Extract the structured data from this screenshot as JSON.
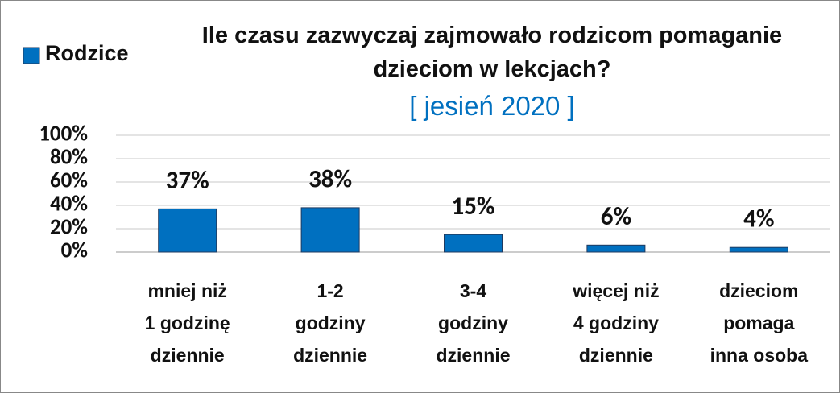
{
  "chart_data": {
    "type": "bar",
    "title": "Ile czasu zazwyczaj zajmowało rodzicom pomaganie dzieciom w lekcjach?",
    "subtitle": "[ jesień 2020 ]",
    "categories": [
      "mniej niż\n1 godzinę\ndziennie",
      "1-2\ngodziny\ndziennie",
      "3-4\ngodziny\ndziennie",
      "więcej niż\n4 godziny\ndziennie",
      "dzieciom\npomaga\ninna osoba"
    ],
    "series": [
      {
        "name": "Rodzice",
        "color": "#0070c0",
        "values": [
          37,
          38,
          15,
          6,
          4
        ],
        "value_labels": [
          "37%",
          "38%",
          "15%",
          "6%",
          "4%"
        ]
      }
    ],
    "ylim": [
      0,
      100
    ],
    "yticks": [
      {
        "value": 0,
        "label": "0%"
      },
      {
        "value": 20,
        "label": "20%"
      },
      {
        "value": 40,
        "label": "40%"
      },
      {
        "value": 60,
        "label": "60%"
      },
      {
        "value": 80,
        "label": "80%"
      },
      {
        "value": 100,
        "label": "100%"
      }
    ],
    "grid": true,
    "legend": "top-left"
  }
}
